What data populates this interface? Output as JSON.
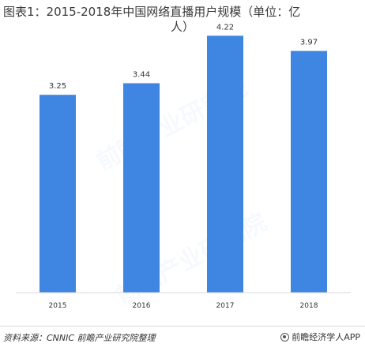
{
  "title_line1": "图表1：2015-2018年中国网络直播用户规模（单位：亿",
  "title_line2": "人）",
  "source": "资料来源：CNNIC 前瞻产业研究院整理",
  "brand": "前瞻经济学人APP",
  "watermark": "前瞻产业研究院",
  "colors": {
    "bar": "#3f85e2"
  },
  "chart_data": {
    "type": "bar",
    "categories": [
      "2015",
      "2016",
      "2017",
      "2018"
    ],
    "values": [
      3.25,
      3.44,
      4.22,
      3.97
    ],
    "value_labels": [
      "3.25",
      "3.44",
      "4.22",
      "3.97"
    ],
    "ylim": [
      0,
      4.6
    ],
    "grid": false,
    "legend": "none"
  }
}
